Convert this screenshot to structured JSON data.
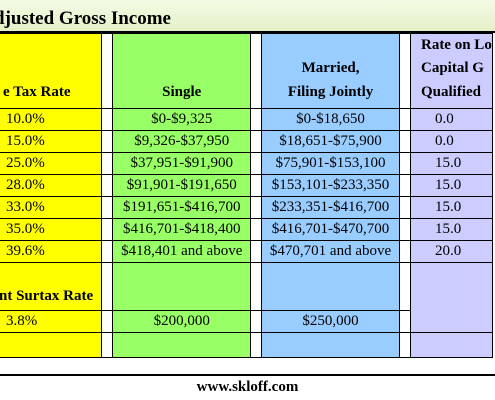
{
  "title": "djusted Gross Income",
  "headers": {
    "rate": "e Tax Rate",
    "single": "Single",
    "married_line1": "Married,",
    "married_line2": "Filing Jointly",
    "lt_line1": "Rate on Lo",
    "lt_line2": "Capital G",
    "lt_line3": "Qualified"
  },
  "rows": [
    {
      "rate": "10.0%",
      "single": "$0-$9,325",
      "married": "$0-$18,650",
      "lt": "0.0"
    },
    {
      "rate": "15.0%",
      "single": "$9,326-$37,950",
      "married": "$18,651-$75,900",
      "lt": "0.0"
    },
    {
      "rate": "25.0%",
      "single": "$37,951-$91,900",
      "married": "$75,901-$153,100",
      "lt": "15.0"
    },
    {
      "rate": "28.0%",
      "single": "$91,901-$191,650",
      "married": "$153,101-$233,350",
      "lt": "15.0"
    },
    {
      "rate": "33.0%",
      "single": "$191,651-$416,700",
      "married": "$233,351-$416,700",
      "lt": "15.0"
    },
    {
      "rate": "35.0%",
      "single": "$416,701-$418,400",
      "married": "$416,701-$470,700",
      "lt": "15.0"
    },
    {
      "rate": "39.6%",
      "single": "$418,401 and above",
      "married": "$470,701 and above",
      "lt": "20.0"
    }
  ],
  "surtax": {
    "header": "nt Surtax Rate",
    "rate": "3.8%",
    "single": "$200,000",
    "married": "$250,000"
  },
  "footer": "www.skloff.com",
  "colors": {
    "rate_column": "#ffff00",
    "single_column": "#99ff66",
    "married_column": "#99ccff",
    "long_term_column": "#ccccff"
  }
}
